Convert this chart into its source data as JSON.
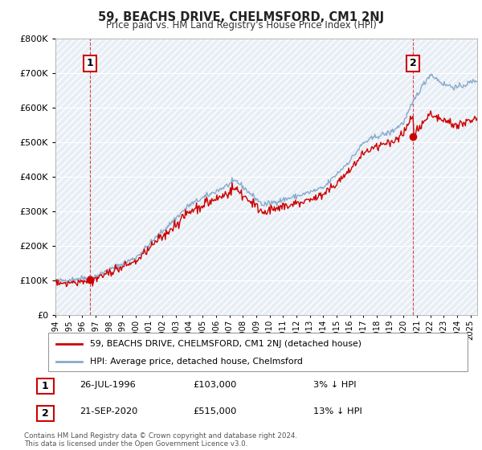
{
  "title": "59, BEACHS DRIVE, CHELMSFORD, CM1 2NJ",
  "subtitle": "Price paid vs. HM Land Registry's House Price Index (HPI)",
  "ylim": [
    0,
    800000
  ],
  "xlim_start": 1994,
  "xlim_end": 2025.5,
  "sale_points": [
    {
      "year": 1996.57,
      "price": 103000,
      "label": "1"
    },
    {
      "year": 2020.72,
      "price": 515000,
      "label": "2"
    }
  ],
  "red_color": "#cc0000",
  "blue_color": "#88aacc",
  "legend_label_red": "59, BEACHS DRIVE, CHELMSFORD, CM1 2NJ (detached house)",
  "legend_label_blue": "HPI: Average price, detached house, Chelmsford",
  "footer_text": "Contains HM Land Registry data © Crown copyright and database right 2024.\nThis data is licensed under the Open Government Licence v3.0.",
  "table_rows": [
    {
      "num": "1",
      "date": "26-JUL-1996",
      "price": "£103,000",
      "rel": "3% ↓ HPI"
    },
    {
      "num": "2",
      "date": "21-SEP-2020",
      "price": "£515,000",
      "rel": "13% ↓ HPI"
    }
  ],
  "hatch_color": "#d0d8e8",
  "bg_color": "#e8eef5"
}
